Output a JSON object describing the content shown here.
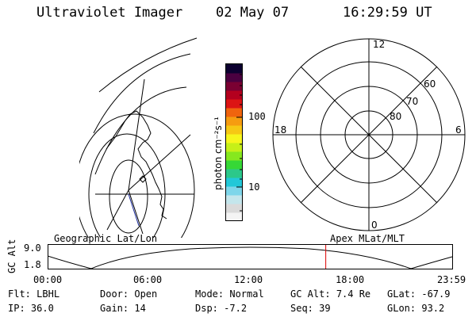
{
  "header": {
    "instrument": "Ultraviolet Imager",
    "date": "02 May 07",
    "time": "16:29:59 UT"
  },
  "colorbar": {
    "label": "photon cm⁻²s⁻¹",
    "ticks": [
      "100",
      "10"
    ],
    "colors": [
      "#f4f4f4",
      "#dadada",
      "#c4e6ec",
      "#7ed6ea",
      "#22c8d8",
      "#2cc88a",
      "#36d836",
      "#86e81e",
      "#c6f018",
      "#f6f61c",
      "#f6c814",
      "#f69c10",
      "#f0640e",
      "#dc1414",
      "#b4001e",
      "#7a0032",
      "#4a0040",
      "#0c0030"
    ]
  },
  "polar_plot": {
    "mlt_labels": [
      "12",
      "18",
      "6",
      "0"
    ],
    "lat_labels": [
      "60",
      "70",
      "80"
    ]
  },
  "timeline": {
    "left_label": "Geographic Lat/Lon",
    "right_label": "Apex MLat/MLT",
    "axis_title": "GC Alt",
    "y_ticks": [
      "9.0",
      "1.8"
    ],
    "x_ticks": [
      "00:00",
      "06:00",
      "12:00",
      "18:00",
      "23:59"
    ],
    "marker_time_hours": 16.5,
    "marker_color": "#dd0000"
  },
  "footer": {
    "row1": [
      {
        "label": "Flt:",
        "value": "LBHL"
      },
      {
        "label": "Door:",
        "value": "Open"
      },
      {
        "label": "Mode:",
        "value": "Normal"
      },
      {
        "label": "GC Alt:",
        "value": "7.4 Re"
      },
      {
        "label": "GLat:",
        "value": "-67.9"
      }
    ],
    "row2": [
      {
        "label": "IP:",
        "value": "36.0"
      },
      {
        "label": "Gain:",
        "value": "14"
      },
      {
        "label": "Dsp:",
        "value": "-7.2"
      },
      {
        "label": "Seq:",
        "value": "39"
      },
      {
        "label": "GLon:",
        "value": "93.2"
      }
    ]
  }
}
